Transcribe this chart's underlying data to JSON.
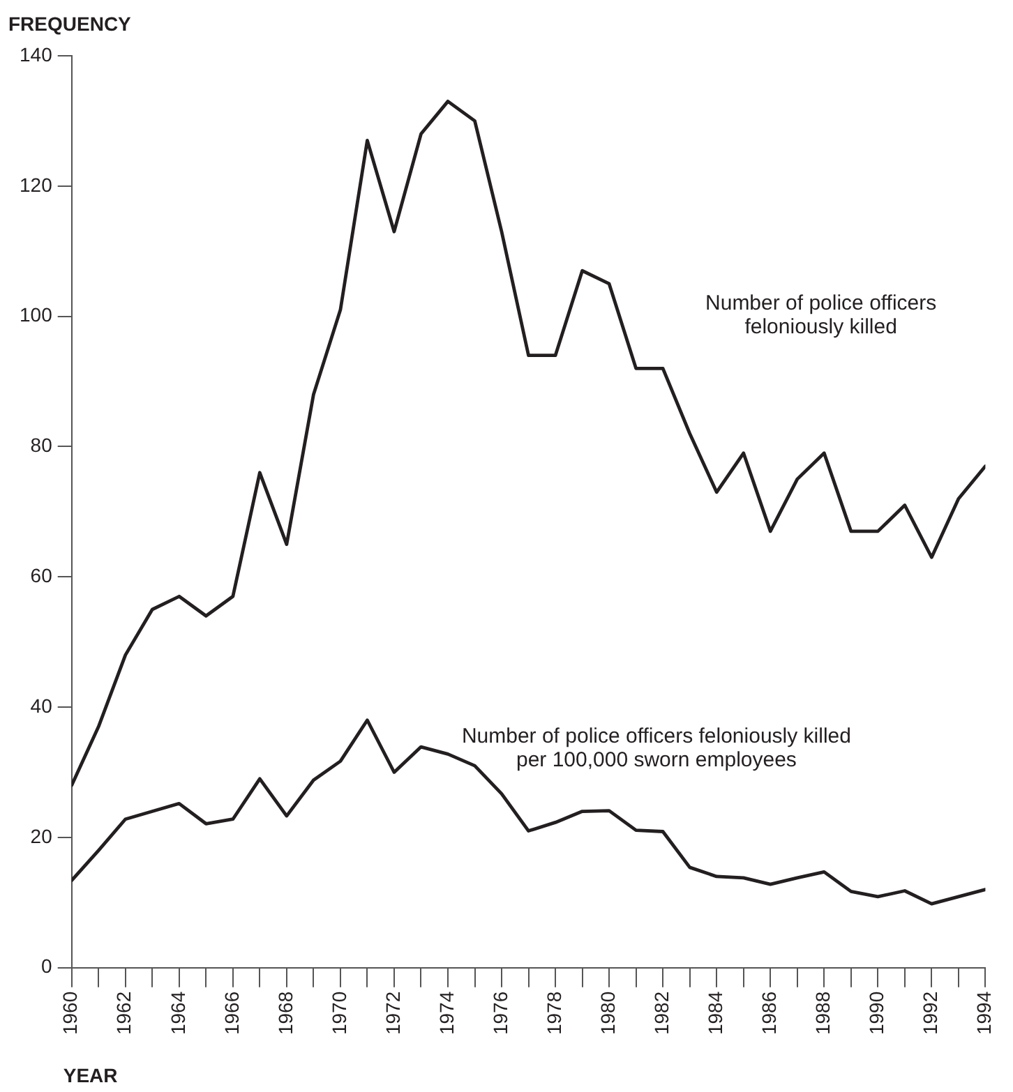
{
  "chart_data": {
    "type": "line",
    "ylabel": "FREQUENCY",
    "xlabel": "YEAR",
    "x": [
      1960,
      1961,
      1962,
      1963,
      1964,
      1965,
      1966,
      1967,
      1968,
      1969,
      1970,
      1971,
      1972,
      1973,
      1974,
      1975,
      1976,
      1977,
      1978,
      1979,
      1980,
      1981,
      1982,
      1983,
      1984,
      1985,
      1986,
      1987,
      1988,
      1989,
      1990,
      1991,
      1992,
      1993,
      1994
    ],
    "series": [
      {
        "name": "Number of police officers feloniously killed",
        "color": "#231f20",
        "values": [
          28,
          37,
          48,
          55,
          57,
          54,
          57,
          76,
          65,
          88,
          101,
          127,
          113,
          128,
          133,
          130,
          113,
          94,
          94,
          107,
          105,
          92,
          92,
          82,
          73,
          79,
          67,
          75,
          79,
          67,
          67,
          71,
          63,
          72,
          77
        ]
      },
      {
        "name": "Number of police officers feloniously killed per 100,000 sworn employees",
        "color": "#231f20",
        "values": [
          13.4,
          18,
          22.8,
          24,
          25.2,
          22.1,
          22.8,
          29,
          23.3,
          28.8,
          31.7,
          38,
          30,
          33.9,
          32.8,
          31,
          26.7,
          21,
          22.3,
          24,
          24.1,
          21.1,
          20.9,
          15.4,
          14,
          13.8,
          12.8,
          13.8,
          14.7,
          11.7,
          10.9,
          11.8,
          9.8,
          10.9,
          12
        ]
      }
    ],
    "xlim": [
      1960,
      1994
    ],
    "xticks": [
      1960,
      {
        "value": 1961,
        "label": null
      },
      1962,
      {
        "value": 1963,
        "label": null
      },
      1964,
      {
        "value": 1965,
        "label": null
      },
      1966,
      {
        "value": 1967,
        "label": null
      },
      1968,
      {
        "value": 1969,
        "label": null
      },
      1970,
      {
        "value": 1971,
        "label": null
      },
      1972,
      {
        "value": 1973,
        "label": null
      },
      1974,
      {
        "value": 1975,
        "label": null
      },
      1976,
      {
        "value": 1977,
        "label": null
      },
      1978,
      {
        "value": 1979,
        "label": null
      },
      1980,
      {
        "value": 1981,
        "label": null
      },
      1982,
      {
        "value": 1983,
        "label": null
      },
      1984,
      {
        "value": 1985,
        "label": null
      },
      1986,
      {
        "value": 1987,
        "label": null
      },
      1988,
      {
        "value": 1989,
        "label": null
      },
      1990,
      {
        "value": 1991,
        "label": null
      },
      1992,
      {
        "value": 1993,
        "label": null
      },
      1994
    ],
    "ylim": [
      0,
      140
    ],
    "yticks": [
      0,
      20,
      40,
      60,
      80,
      100,
      120,
      140
    ],
    "grid": false,
    "legend": false,
    "marker": "none",
    "line_style": "solid"
  }
}
